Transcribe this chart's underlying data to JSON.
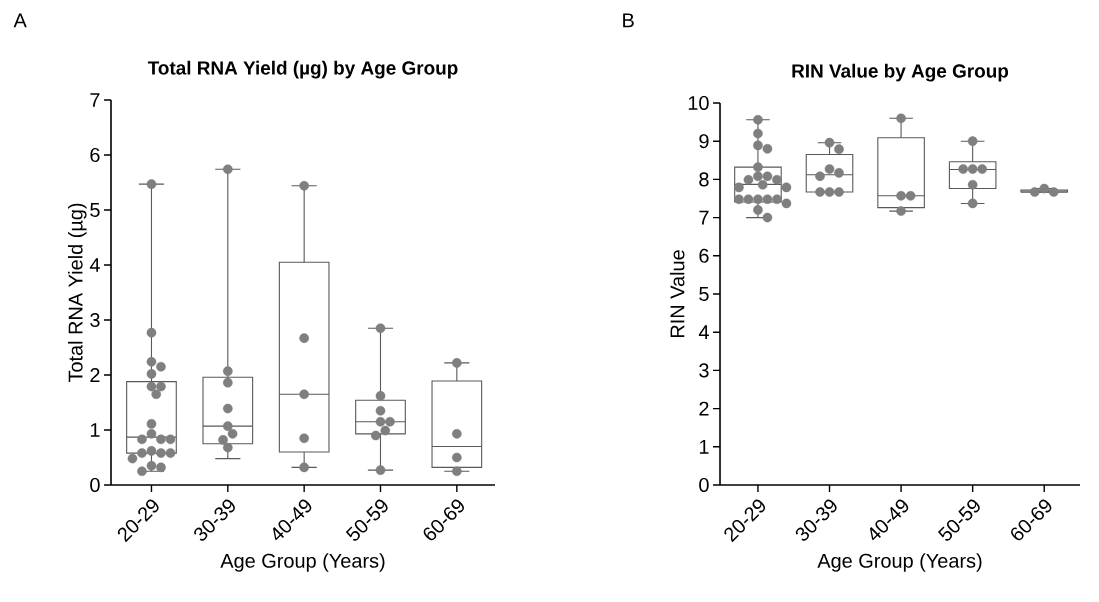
{
  "chart_data": [
    {
      "type": "box",
      "title": "Total RNA Yield (µg) by Age Group",
      "xlabel": "Age Group (Years)",
      "ylabel": "Total RNA Yield (µg)",
      "annotations": [
        "A"
      ],
      "categories": [
        "20-29",
        "30-39",
        "40-49",
        "50-59",
        "60-69"
      ],
      "ylim": [
        0,
        7
      ],
      "yticks": [
        0,
        1,
        2,
        3,
        4,
        5,
        6,
        7
      ],
      "series": [
        {
          "type": "box",
          "color": "#595959",
          "boxes": [
            {
              "low": 0.25,
              "q1": 0.58,
              "median": 0.87,
              "q3": 1.88,
              "high": 5.47
            },
            {
              "low": 0.48,
              "q1": 0.75,
              "median": 1.07,
              "q3": 1.96,
              "high": 5.74
            },
            {
              "low": 0.32,
              "q1": 0.6,
              "median": 1.65,
              "q3": 4.05,
              "high": 5.44
            },
            {
              "low": 0.27,
              "q1": 0.93,
              "median": 1.15,
              "q3": 1.54,
              "high": 2.85
            },
            {
              "low": 0.25,
              "q1": 0.32,
              "median": 0.7,
              "q3": 1.89,
              "high": 2.22
            }
          ]
        },
        {
          "type": "scatter",
          "color": "#7f7f7f",
          "marker": "circle",
          "x": [
            "20-29",
            "20-29",
            "20-29",
            "20-29",
            "20-29",
            "20-29",
            "20-29",
            "20-29",
            "20-29",
            "20-29",
            "20-29",
            "20-29",
            "20-29",
            "20-29",
            "20-29",
            "20-29",
            "20-29",
            "20-29",
            "20-29",
            "20-29",
            "20-29",
            "30-39",
            "30-39",
            "30-39",
            "30-39",
            "30-39",
            "30-39",
            "30-39",
            "30-39",
            "40-49",
            "40-49",
            "40-49",
            "40-49",
            "40-49",
            "50-59",
            "50-59",
            "50-59",
            "50-59",
            "50-59",
            "50-59",
            "50-59",
            "50-59",
            "60-69",
            "60-69",
            "60-69",
            "60-69"
          ],
          "values": [
            5.47,
            2.77,
            2.24,
            2.15,
            2.02,
            1.79,
            1.79,
            1.65,
            1.11,
            0.93,
            0.83,
            0.83,
            0.83,
            0.62,
            0.58,
            0.58,
            0.58,
            0.48,
            0.35,
            0.32,
            0.25,
            5.74,
            2.07,
            1.86,
            1.39,
            1.07,
            0.93,
            0.82,
            0.68,
            5.44,
            2.67,
            1.65,
            0.85,
            0.32,
            2.85,
            1.62,
            1.35,
            1.15,
            1.15,
            0.99,
            0.9,
            0.27,
            2.22,
            0.93,
            0.5,
            0.25
          ]
        }
      ]
    },
    {
      "type": "box",
      "title": "RIN Value by Age Group",
      "xlabel": "Age Group (Years)",
      "ylabel": "RIN Value",
      "annotations": [
        "B"
      ],
      "categories": [
        "20-29",
        "30-39",
        "40-49",
        "50-59",
        "60-69"
      ],
      "ylim": [
        0,
        10
      ],
      "yticks": [
        0,
        1,
        2,
        3,
        4,
        5,
        6,
        7,
        8,
        9,
        10
      ],
      "series": [
        {
          "type": "box",
          "color": "#595959",
          "boxes": [
            {
              "low": 7.0,
              "q1": 7.41,
              "median": 7.87,
              "q3": 8.32,
              "high": 9.56
            },
            {
              "low": 7.67,
              "q1": 7.67,
              "median": 8.12,
              "q3": 8.65,
              "high": 8.96
            },
            {
              "low": 7.17,
              "q1": 7.26,
              "median": 7.57,
              "q3": 9.09,
              "high": 9.6
            },
            {
              "low": 7.37,
              "q1": 7.76,
              "median": 8.26,
              "q3": 8.46,
              "high": 9.0
            },
            {
              "low": 7.67,
              "q1": 7.67,
              "median": 7.67,
              "q3": 7.72,
              "high": 7.76
            }
          ]
        },
        {
          "type": "scatter",
          "color": "#7f7f7f",
          "marker": "circle",
          "x": [
            "20-29",
            "20-29",
            "20-29",
            "20-29",
            "20-29",
            "20-29",
            "20-29",
            "20-29",
            "20-29",
            "20-29",
            "20-29",
            "20-29",
            "20-29",
            "20-29",
            "20-29",
            "20-29",
            "20-29",
            "20-29",
            "20-29",
            "20-29",
            "30-39",
            "30-39",
            "30-39",
            "30-39",
            "30-39",
            "30-39",
            "30-39",
            "30-39",
            "40-49",
            "40-49",
            "40-49",
            "40-49",
            "50-59",
            "50-59",
            "50-59",
            "50-59",
            "50-59",
            "50-59",
            "60-69",
            "60-69",
            "60-69"
          ],
          "values": [
            9.56,
            9.2,
            8.89,
            8.8,
            8.32,
            8.08,
            8.08,
            7.99,
            7.99,
            7.86,
            7.79,
            7.79,
            7.48,
            7.48,
            7.48,
            7.48,
            7.48,
            7.37,
            7.2,
            7.0,
            8.96,
            8.79,
            8.27,
            8.17,
            8.08,
            7.67,
            7.67,
            7.67,
            9.6,
            7.57,
            7.57,
            7.17,
            9.0,
            8.27,
            8.27,
            8.27,
            7.86,
            7.37,
            7.67,
            7.76,
            7.67
          ]
        }
      ]
    }
  ]
}
